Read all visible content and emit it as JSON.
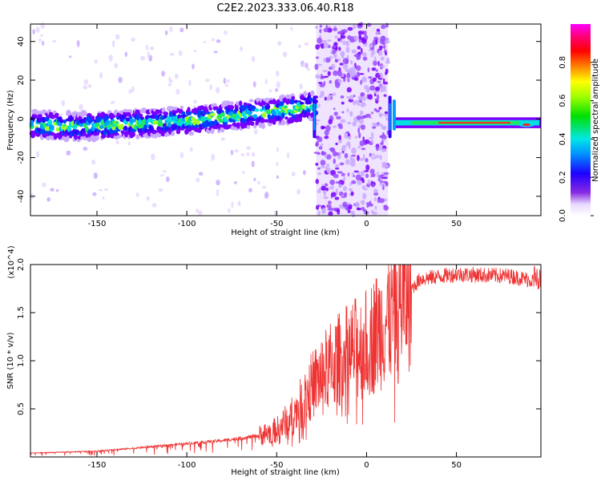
{
  "title": "C2E2.2023.333.06.40.R18",
  "chart_data": [
    {
      "type": "heatmap",
      "xlabel": "Height of straight line (km)",
      "ylabel": "Frequency (Hz)",
      "xlim": [
        -187,
        97
      ],
      "ylim": [
        -50,
        49
      ],
      "xticks": [
        -150,
        -100,
        -50,
        0,
        50
      ],
      "yticks": [
        -40,
        -20,
        0,
        20,
        40
      ],
      "colorbar": {
        "label": "Normalized spectral amplitude",
        "range": [
          0,
          1
        ],
        "ticks": [
          "0.0",
          "0.2",
          "0.4",
          "0.6",
          "0.8"
        ],
        "colormap": "rainbow (violet-blue-cyan-green-yellow-red-magenta)"
      },
      "ridge": {
        "description": "frequency of main signal ridge vs height",
        "x": [
          -185,
          -160,
          -140,
          -120,
          -100,
          -80,
          -60,
          -40,
          -30,
          15,
          30,
          60,
          80,
          95
        ],
        "y": [
          -3,
          -4,
          -3,
          -2,
          -1,
          1,
          3,
          5,
          7,
          -2,
          -2,
          -2,
          -2,
          -3
        ]
      },
      "noise_band": {
        "x_range": [
          -28,
          12
        ],
        "y_range": [
          -50,
          49
        ]
      }
    },
    {
      "type": "line",
      "xlabel": "Height of straight line (km)",
      "ylabel": "SNR (10 * v/v)",
      "y_multiplier": "(x10^4)",
      "xlim": [
        -187,
        97
      ],
      "ylim": [
        0,
        2.0
      ],
      "xticks": [
        -150,
        -100,
        -50,
        0,
        50
      ],
      "yticks": [
        "0.5",
        "1.0",
        "1.5",
        "2.0"
      ],
      "color": "#ee3333",
      "envelope": {
        "x": [
          -187,
          -150,
          -130,
          -100,
          -80,
          -60,
          -50,
          -40,
          -30,
          -20,
          -10,
          0,
          10,
          20,
          30,
          50,
          80,
          97
        ],
        "y": [
          0.04,
          0.06,
          0.09,
          0.14,
          0.17,
          0.22,
          0.28,
          0.45,
          0.75,
          0.95,
          1.08,
          1.18,
          1.4,
          1.65,
          1.85,
          1.9,
          1.88,
          1.82
        ]
      }
    }
  ]
}
